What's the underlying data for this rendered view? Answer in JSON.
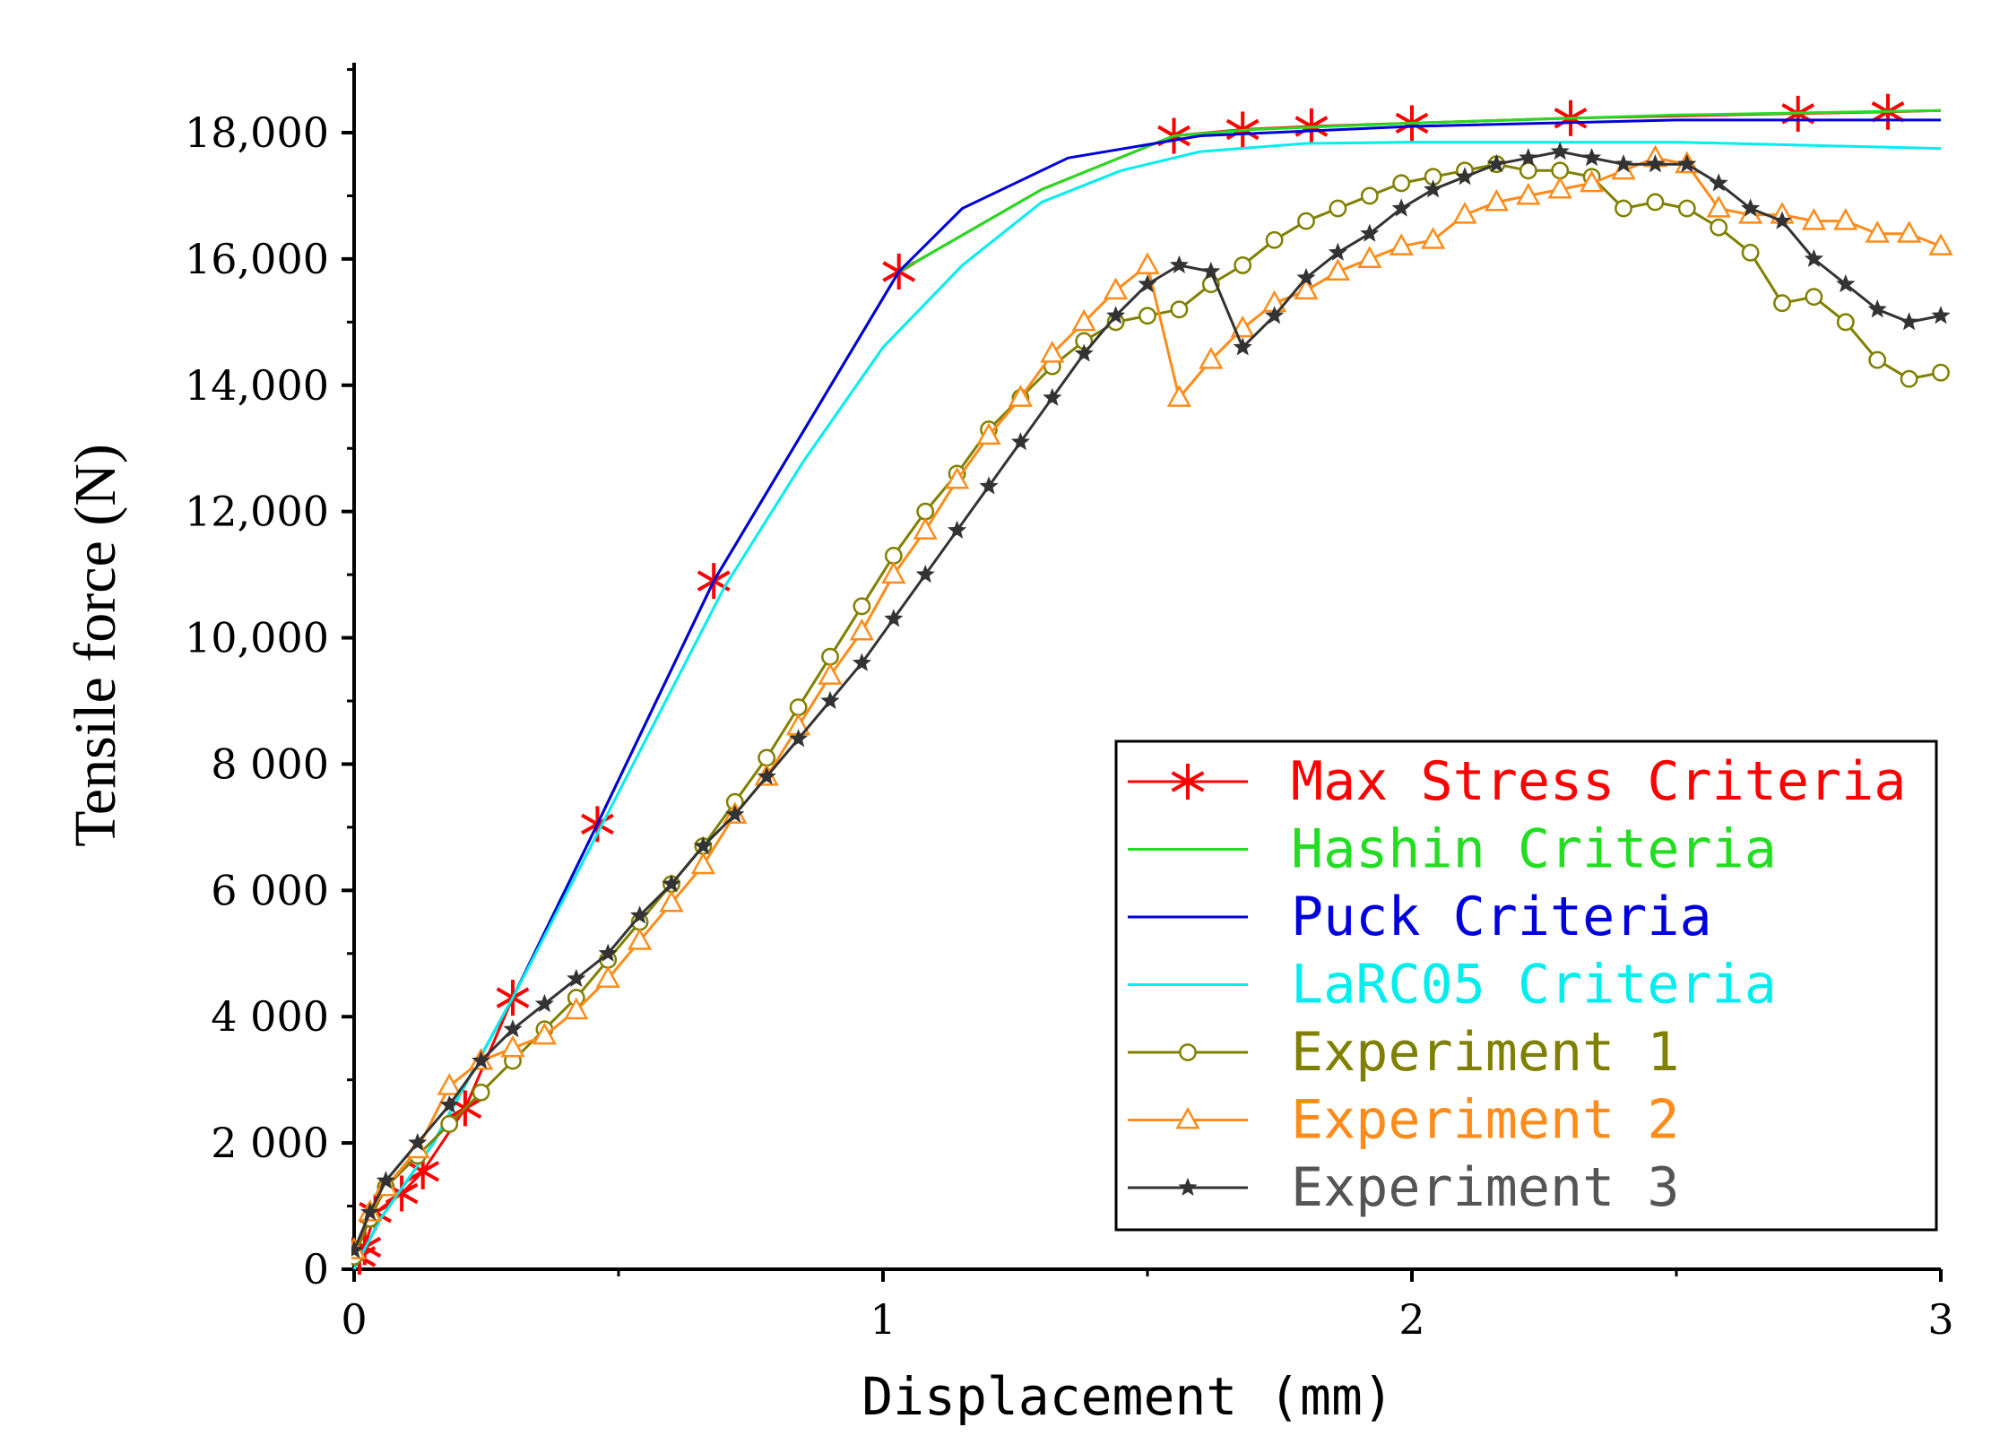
{
  "chart_data": {
    "type": "line",
    "title": "",
    "xlabel": "Displacement (mm)",
    "ylabel": "Tensile force (N)",
    "xlim": [
      0,
      3
    ],
    "ylim": [
      0,
      19000
    ],
    "x_ticks": [
      {
        "value": 0,
        "label": "0"
      },
      {
        "value": 1,
        "label": "1"
      },
      {
        "value": 2,
        "label": "2"
      },
      {
        "value": 3,
        "label": "3"
      }
    ],
    "y_ticks": [
      {
        "value": 0,
        "label": "0"
      },
      {
        "value": 2000,
        "label": "2 000"
      },
      {
        "value": 4000,
        "label": "4 000"
      },
      {
        "value": 6000,
        "label": "6 000"
      },
      {
        "value": 8000,
        "label": "8 000"
      },
      {
        "value": 10000,
        "label": "10,000"
      },
      {
        "value": 12000,
        "label": "12,000"
      },
      {
        "value": 14000,
        "label": "14,000"
      },
      {
        "value": 16000,
        "label": "16,000"
      },
      {
        "value": 18000,
        "label": "18,000"
      }
    ],
    "grid": false,
    "legend_position": "bottom-right",
    "series": [
      {
        "name": "Max Stress Criteria",
        "color": "#ff0000",
        "marker": "asterisk",
        "marker_color": "#ff0000",
        "x": [
          0,
          0.01,
          0.02,
          0.04,
          0.09,
          0.13,
          0.21,
          0.3,
          0.46,
          0.68,
          1.03,
          1.3,
          1.55,
          1.68,
          1.81,
          2.0,
          2.3,
          2.7,
          2.9,
          3.0
        ],
        "y": [
          0,
          200,
          350,
          900,
          1200,
          1550,
          2550,
          4300,
          7050,
          10900,
          15800,
          17100,
          17950,
          18050,
          18100,
          18150,
          18230,
          18300,
          18330,
          18350
        ],
        "marker_x": [
          0.01,
          0.02,
          0.04,
          0.09,
          0.13,
          0.21,
          0.3,
          0.46,
          0.68,
          1.03,
          1.55,
          1.68,
          1.81,
          2.0,
          2.3,
          2.73,
          2.9
        ],
        "marker_y": [
          200,
          350,
          900,
          1200,
          1550,
          2550,
          4300,
          7050,
          10900,
          15800,
          17950,
          18050,
          18100,
          18150,
          18230,
          18300,
          18330
        ]
      },
      {
        "name": "Hashin Criteria",
        "color": "#22dd22",
        "marker": "none",
        "x": [
          0,
          0.05,
          0.15,
          0.3,
          0.46,
          0.68,
          1.03,
          1.3,
          1.55,
          1.7,
          2.0,
          2.5,
          3.0
        ],
        "y": [
          0,
          800,
          2000,
          4300,
          7050,
          10900,
          15800,
          17100,
          17950,
          18050,
          18150,
          18280,
          18350
        ]
      },
      {
        "name": "Puck Criteria",
        "color": "#0000dd",
        "marker": "none",
        "x": [
          0,
          0.05,
          0.15,
          0.3,
          0.46,
          0.68,
          1.03,
          1.15,
          1.35,
          1.6,
          2.0,
          2.5,
          3.0
        ],
        "y": [
          0,
          800,
          2000,
          4300,
          7050,
          10900,
          15800,
          16800,
          17600,
          17950,
          18100,
          18200,
          18200
        ]
      },
      {
        "name": "LaRC05 Criteria",
        "color": "#00eeee",
        "marker": "none",
        "x": [
          0,
          0.05,
          0.15,
          0.3,
          0.46,
          0.7,
          0.85,
          1.0,
          1.15,
          1.3,
          1.45,
          1.6,
          1.8,
          2.0,
          2.5,
          3.0
        ],
        "y": [
          0,
          800,
          2000,
          4300,
          6900,
          10800,
          12800,
          14600,
          15900,
          16900,
          17400,
          17700,
          17830,
          17850,
          17850,
          17750
        ]
      },
      {
        "name": "Experiment 1",
        "color": "#808000",
        "marker": "circle",
        "x": [
          0,
          0.03,
          0.06,
          0.12,
          0.18,
          0.24,
          0.3,
          0.36,
          0.42,
          0.48,
          0.54,
          0.6,
          0.66,
          0.72,
          0.78,
          0.84,
          0.9,
          0.96,
          1.02,
          1.08,
          1.14,
          1.2,
          1.26,
          1.32,
          1.38,
          1.44,
          1.5,
          1.56,
          1.62,
          1.68,
          1.74,
          1.8,
          1.86,
          1.92,
          1.98,
          2.04,
          2.1,
          2.16,
          2.22,
          2.28,
          2.34,
          2.4,
          2.46,
          2.52,
          2.58,
          2.64,
          2.7,
          2.76,
          2.82,
          2.88,
          2.94,
          3.0
        ],
        "y": [
          200,
          800,
          1300,
          1800,
          2300,
          2800,
          3300,
          3800,
          4300,
          4900,
          5500,
          6100,
          6700,
          7400,
          8100,
          8900,
          9700,
          10500,
          11300,
          12000,
          12600,
          13300,
          13800,
          14300,
          14700,
          15000,
          15100,
          15200,
          15600,
          15900,
          16300,
          16600,
          16800,
          17000,
          17200,
          17300,
          17400,
          17500,
          17400,
          17400,
          17300,
          16800,
          16900,
          16800,
          16500,
          16100,
          15300,
          15400,
          15000,
          14400,
          14100,
          14200
        ]
      },
      {
        "name": "Experiment 2",
        "color": "#ff8c1a",
        "marker": "triangle",
        "x": [
          0,
          0.03,
          0.06,
          0.12,
          0.18,
          0.24,
          0.3,
          0.36,
          0.42,
          0.48,
          0.54,
          0.6,
          0.66,
          0.72,
          0.78,
          0.84,
          0.9,
          0.96,
          1.02,
          1.08,
          1.14,
          1.2,
          1.26,
          1.32,
          1.38,
          1.44,
          1.5,
          1.56,
          1.62,
          1.68,
          1.74,
          1.8,
          1.86,
          1.92,
          1.98,
          2.04,
          2.1,
          2.16,
          2.22,
          2.28,
          2.34,
          2.4,
          2.46,
          2.52,
          2.58,
          2.64,
          2.7,
          2.76,
          2.82,
          2.88,
          2.94,
          3.0
        ],
        "y": [
          300,
          900,
          1300,
          1900,
          2900,
          3300,
          3500,
          3700,
          4100,
          4600,
          5200,
          5800,
          6400,
          7200,
          7800,
          8600,
          9400,
          10100,
          11000,
          11700,
          12500,
          13200,
          13800,
          14500,
          15000,
          15500,
          15900,
          13800,
          14400,
          14900,
          15300,
          15500,
          15800,
          16000,
          16200,
          16300,
          16700,
          16900,
          17000,
          17100,
          17200,
          17400,
          17600,
          17500,
          16800,
          16700,
          16700,
          16600,
          16600,
          16400,
          16400,
          16200
        ]
      },
      {
        "name": "Experiment 3",
        "color": "#333333",
        "marker": "star",
        "x": [
          0,
          0.03,
          0.06,
          0.12,
          0.18,
          0.24,
          0.3,
          0.36,
          0.42,
          0.48,
          0.54,
          0.6,
          0.66,
          0.72,
          0.78,
          0.84,
          0.9,
          0.96,
          1.02,
          1.08,
          1.14,
          1.2,
          1.26,
          1.32,
          1.38,
          1.44,
          1.5,
          1.56,
          1.62,
          1.68,
          1.74,
          1.8,
          1.86,
          1.92,
          1.98,
          2.04,
          2.1,
          2.16,
          2.22,
          2.28,
          2.34,
          2.4,
          2.46,
          2.52,
          2.58,
          2.64,
          2.7,
          2.76,
          2.82,
          2.88,
          2.94,
          3.0
        ],
        "y": [
          300,
          900,
          1400,
          2000,
          2600,
          3300,
          3800,
          4200,
          4600,
          5000,
          5600,
          6100,
          6700,
          7200,
          7800,
          8400,
          9000,
          9600,
          10300,
          11000,
          11700,
          12400,
          13100,
          13800,
          14500,
          15100,
          15600,
          15900,
          15800,
          14600,
          15100,
          15700,
          16100,
          16400,
          16800,
          17100,
          17300,
          17500,
          17600,
          17700,
          17600,
          17500,
          17500,
          17500,
          17200,
          16800,
          16600,
          16000,
          15600,
          15200,
          15000,
          15100
        ]
      }
    ]
  }
}
